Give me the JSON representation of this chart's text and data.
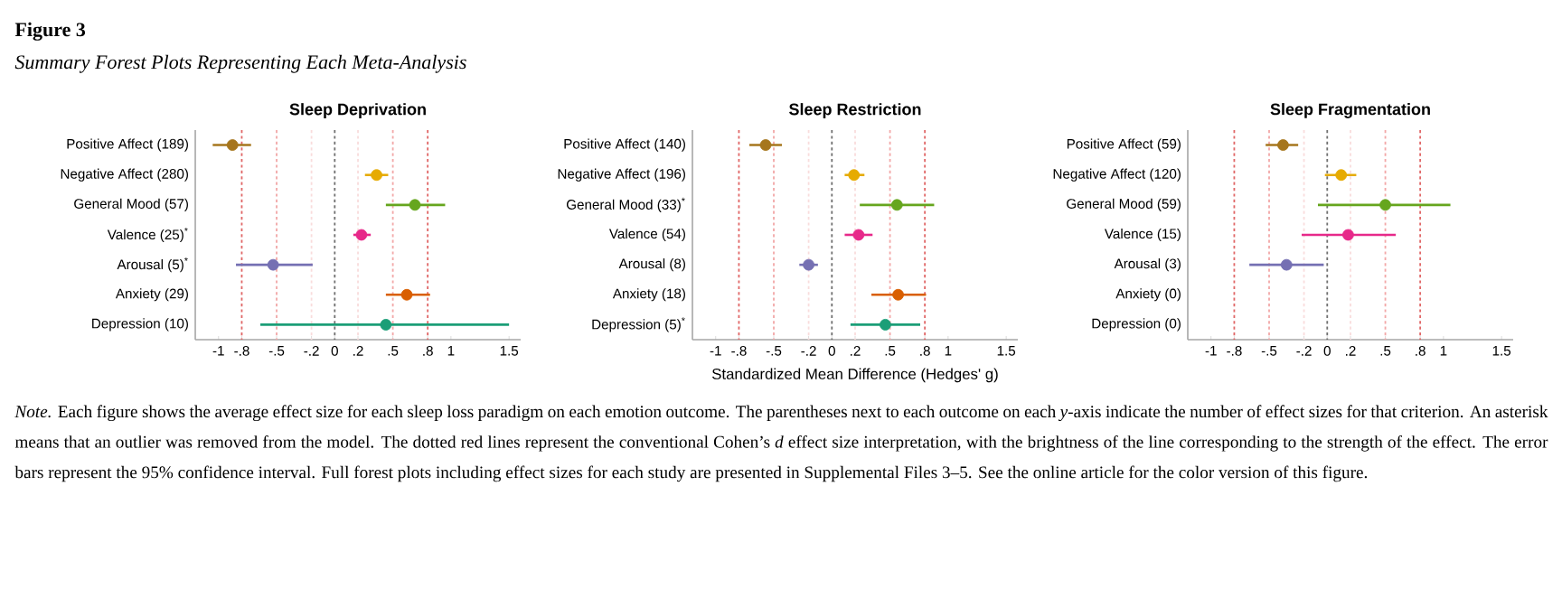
{
  "chart_data": [
    {
      "type": "other",
      "title": "Figure 3",
      "subtitle": "Summary Forest Plots Representing Each Meta-Analysis",
      "annotations": [
        "*Note.* Each figure shows the average effect size for each sleep loss paradigm on each emotion outcome. The parentheses next to each outcome on each *y*-axis indicate the number of effect sizes for that criterion. An asterisk means that an outlier was removed from the model. The dotted red lines represent the conventional Cohen’s *d* effect size interpretation, with the brightness of the line corresponding to the strength of the effect. The error bars represent the 95% confidence interval. Full forest plots including effect sizes for each study are presented in Supplemental Files 3–5. See the online article for the color version of this figure."
      ]
    },
    {
      "type": "scatter",
      "orientation": "horizontal",
      "title": "Sleep Deprivation",
      "marker": "circle",
      "categories": [
        "Positive Affect (189)",
        "Negative Affect (280)",
        "General Mood (57)",
        "Valence (25)$^{*}$",
        "Arousal (5)$^{*}$",
        "Anxiety (29)",
        "Depression (10)"
      ],
      "values": [
        -0.88,
        0.36,
        0.69,
        0.23,
        -0.53,
        0.62,
        0.44
      ],
      "errors": [
        [
          -1.05,
          -0.72
        ],
        [
          0.26,
          0.46
        ],
        [
          0.44,
          0.95
        ],
        [
          0.16,
          0.31
        ],
        [
          -0.85,
          -0.19
        ],
        [
          0.44,
          0.82
        ],
        [
          -0.64,
          1.5
        ]
      ],
      "colors": [
        "#a6761d",
        "#e6ab02",
        "#66a61e",
        "#e7298a",
        "#7570b3",
        "#d95f02",
        "#1b9e77"
      ],
      "xlim": [
        -1.2,
        1.6
      ],
      "xticks": [
        -1,
        {
          "value": -0.8,
          "label": "-.8"
        },
        {
          "value": -0.5,
          "label": "-.5"
        },
        {
          "value": -0.2,
          "label": "-.2"
        },
        0,
        {
          "value": 0.2,
          "label": ".2"
        },
        {
          "value": 0.5,
          "label": ".5"
        },
        {
          "value": 0.8,
          "label": ".8"
        },
        1,
        1.5
      ],
      "ref_lines": [
        {
          "axis": "x",
          "value": -0.8,
          "color": "#e06666",
          "line_style": "dotted"
        },
        {
          "axis": "x",
          "value": -0.5,
          "color": "#f2a7a7",
          "line_style": "dotted"
        },
        {
          "axis": "x",
          "value": -0.2,
          "color": "#f9dcdc",
          "line_style": "dotted"
        },
        {
          "axis": "x",
          "value": 0,
          "color": "#707070",
          "line_style": "dotted"
        },
        {
          "axis": "x",
          "value": 0.2,
          "color": "#f9dcdc",
          "line_style": "dotted"
        },
        {
          "axis": "x",
          "value": 0.5,
          "color": "#f2a7a7",
          "line_style": "dotted"
        },
        {
          "axis": "x",
          "value": 0.8,
          "color": "#e06666",
          "line_style": "dotted"
        }
      ]
    },
    {
      "type": "scatter",
      "orientation": "horizontal",
      "title": "Sleep Restriction",
      "xlabel": "Standardized Mean Difference (Hedges' g)",
      "marker": "circle",
      "categories": [
        "Positive Affect (140)",
        "Negative Affect (196)",
        "General Mood (33)$^{*}$",
        "Valence (54)",
        "Arousal (8)",
        "Anxiety (18)",
        "Depression (5)$^{*}$"
      ],
      "values": [
        -0.57,
        0.19,
        0.56,
        0.23,
        -0.2,
        0.57,
        0.46
      ],
      "errors": [
        [
          -0.71,
          -0.43
        ],
        [
          0.11,
          0.28
        ],
        [
          0.24,
          0.88
        ],
        [
          0.11,
          0.35
        ],
        [
          -0.28,
          -0.12
        ],
        [
          0.34,
          0.81
        ],
        [
          0.16,
          0.76
        ]
      ],
      "colors": [
        "#a6761d",
        "#e6ab02",
        "#66a61e",
        "#e7298a",
        "#7570b3",
        "#d95f02",
        "#1b9e77"
      ],
      "xlim": [
        -1.2,
        1.6
      ],
      "xticks": [
        -1,
        {
          "value": -0.8,
          "label": "-.8"
        },
        {
          "value": -0.5,
          "label": "-.5"
        },
        {
          "value": -0.2,
          "label": "-.2"
        },
        0,
        {
          "value": 0.2,
          "label": ".2"
        },
        {
          "value": 0.5,
          "label": ".5"
        },
        {
          "value": 0.8,
          "label": ".8"
        },
        1,
        1.5
      ],
      "ref_lines": [
        {
          "axis": "x",
          "value": -0.8,
          "color": "#e06666",
          "line_style": "dotted"
        },
        {
          "axis": "x",
          "value": -0.5,
          "color": "#f2a7a7",
          "line_style": "dotted"
        },
        {
          "axis": "x",
          "value": -0.2,
          "color": "#f9dcdc",
          "line_style": "dotted"
        },
        {
          "axis": "x",
          "value": 0,
          "color": "#707070",
          "line_style": "dotted"
        },
        {
          "axis": "x",
          "value": 0.2,
          "color": "#f9dcdc",
          "line_style": "dotted"
        },
        {
          "axis": "x",
          "value": 0.5,
          "color": "#f2a7a7",
          "line_style": "dotted"
        },
        {
          "axis": "x",
          "value": 0.8,
          "color": "#e06666",
          "line_style": "dotted"
        }
      ]
    },
    {
      "type": "scatter",
      "orientation": "horizontal",
      "title": "Sleep Fragmentation",
      "marker": "circle",
      "categories": [
        "Positive Affect (59)",
        "Negative Affect (120)",
        "General Mood (59)",
        "Valence (15)",
        "Arousal (3)",
        "Anxiety (0)",
        "Depression (0)"
      ],
      "values": [
        -0.38,
        0.12,
        0.5,
        0.18,
        -0.35,
        null,
        null
      ],
      "errors": [
        [
          -0.53,
          -0.25
        ],
        [
          -0.02,
          0.25
        ],
        [
          -0.08,
          1.06
        ],
        [
          -0.22,
          0.59
        ],
        [
          -0.67,
          -0.03
        ],
        null,
        null
      ],
      "colors": [
        "#a6761d",
        "#e6ab02",
        "#66a61e",
        "#e7298a",
        "#7570b3",
        "#d95f02",
        "#1b9e77"
      ],
      "xlim": [
        -1.2,
        1.6
      ],
      "xticks": [
        -1,
        {
          "value": -0.8,
          "label": "-.8"
        },
        {
          "value": -0.5,
          "label": "-.5"
        },
        {
          "value": -0.2,
          "label": "-.2"
        },
        0,
        {
          "value": 0.2,
          "label": ".2"
        },
        {
          "value": 0.5,
          "label": ".5"
        },
        {
          "value": 0.8,
          "label": ".8"
        },
        1,
        1.5
      ],
      "ref_lines": [
        {
          "axis": "x",
          "value": -0.8,
          "color": "#e06666",
          "line_style": "dotted"
        },
        {
          "axis": "x",
          "value": -0.5,
          "color": "#f2a7a7",
          "line_style": "dotted"
        },
        {
          "axis": "x",
          "value": -0.2,
          "color": "#f9dcdc",
          "line_style": "dotted"
        },
        {
          "axis": "x",
          "value": 0,
          "color": "#707070",
          "line_style": "dotted"
        },
        {
          "axis": "x",
          "value": 0.2,
          "color": "#f9dcdc",
          "line_style": "dotted"
        },
        {
          "axis": "x",
          "value": 0.5,
          "color": "#f2a7a7",
          "line_style": "dotted"
        },
        {
          "axis": "x",
          "value": 0.8,
          "color": "#e06666",
          "line_style": "dotted"
        }
      ]
    }
  ]
}
